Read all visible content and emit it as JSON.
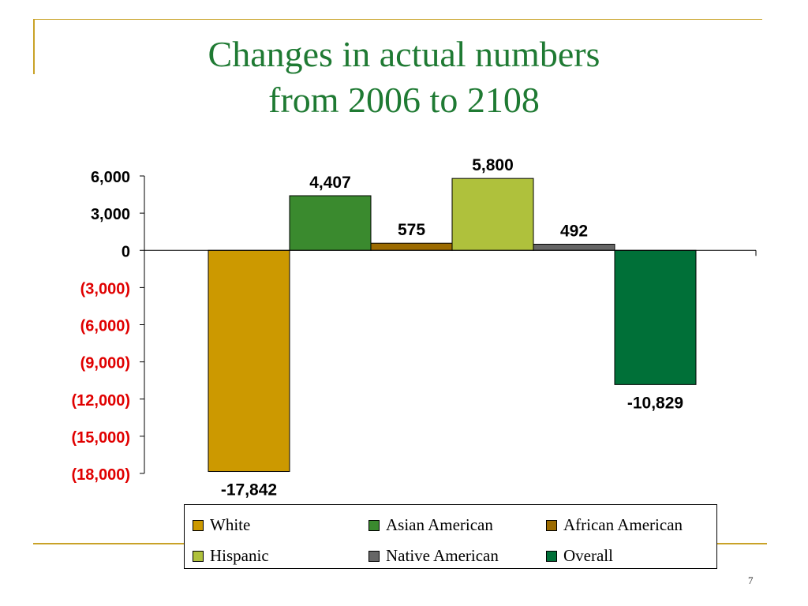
{
  "title_line1": "Changes in actual numbers",
  "title_line2": "from 2006 to 2108",
  "page_number": "7",
  "chart_data": {
    "type": "bar",
    "categories": [
      "White",
      "Asian American",
      "African American",
      "Hispanic",
      "Native American",
      "Overall"
    ],
    "values": [
      -17842,
      4407,
      575,
      5800,
      492,
      -10829
    ],
    "data_labels": [
      "-17,842",
      "4,407",
      "575",
      "5,800",
      "492",
      "-10,829"
    ],
    "colors": [
      "#cc9900",
      "#3a8a2e",
      "#9c6b00",
      "#afc13c",
      "#666666",
      "#007038"
    ],
    "ylim": [
      -18000,
      6000
    ],
    "yticks": [
      6000,
      3000,
      0,
      -3000,
      -6000,
      -9000,
      -12000,
      -15000,
      -18000
    ],
    "ytick_labels": [
      "6,000",
      "3,000",
      "0",
      "(3,000)",
      "(6,000)",
      "(9,000)",
      "(12,000)",
      "(15,000)",
      "(18,000)"
    ],
    "positive_tick_color": "#000000",
    "negative_tick_color": "#e00000",
    "legend": {
      "position": "bottom",
      "entries": [
        "White",
        "Asian American",
        "African American",
        "Hispanic",
        "Native American",
        "Overall"
      ]
    },
    "grid": false
  }
}
